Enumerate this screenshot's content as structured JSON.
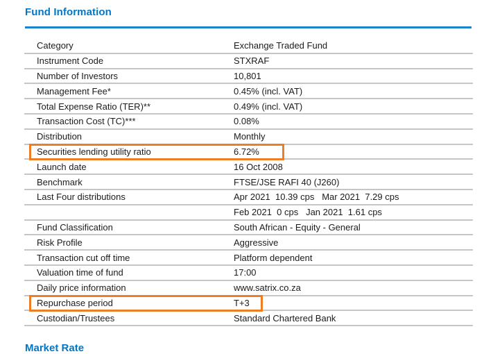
{
  "section": {
    "title": "Fund Information"
  },
  "next_section": {
    "title": "Market Rate"
  },
  "colors": {
    "accent_blue": "#0077C8",
    "highlight_orange": "#EE7E23",
    "row_line_gray": "#C6C6C6"
  },
  "fund_table": {
    "rows": [
      {
        "label": "Category",
        "value": "Exchange Traded Fund"
      },
      {
        "label": "Instrument Code",
        "value": "STXRAF"
      },
      {
        "label": "Number of Investors",
        "value": "10,801"
      },
      {
        "label": "Management Fee*",
        "value": "0.45% (incl. VAT)"
      },
      {
        "label": "Total Expense Ratio (TER)**",
        "value": "0.49% (incl. VAT)"
      },
      {
        "label": "Transaction Cost (TC)***",
        "value": "0.08%"
      },
      {
        "label": "Distribution",
        "value": "Monthly"
      },
      {
        "label": "Securities lending utility ratio",
        "value": "6.72%",
        "highlight": "wide"
      },
      {
        "label": "Launch date",
        "value": "16 Oct 2008"
      },
      {
        "label": "Benchmark",
        "value": "FTSE/JSE RAFI 40 (J260)"
      },
      {
        "label": "Last Four distributions",
        "value": "Apr 2021  10.39 cps   Mar 2021  7.29 cps"
      },
      {
        "label": "",
        "value": "Feb 2021  0 cps   Jan 2021  1.61 cps"
      },
      {
        "label": "Fund Classification",
        "value": "South African - Equity - General"
      },
      {
        "label": "Risk Profile",
        "value": "Aggressive"
      },
      {
        "label": "Transaction cut off time",
        "value": "Platform dependent"
      },
      {
        "label": "Valuation time of fund",
        "value": "17:00"
      },
      {
        "label": "Daily price information",
        "value": "www.satrix.co.za"
      },
      {
        "label": "Repurchase period",
        "value": "T+3",
        "highlight": "narrow"
      },
      {
        "label": "Custodian/Trustees",
        "value": "Standard Chartered Bank"
      }
    ]
  }
}
